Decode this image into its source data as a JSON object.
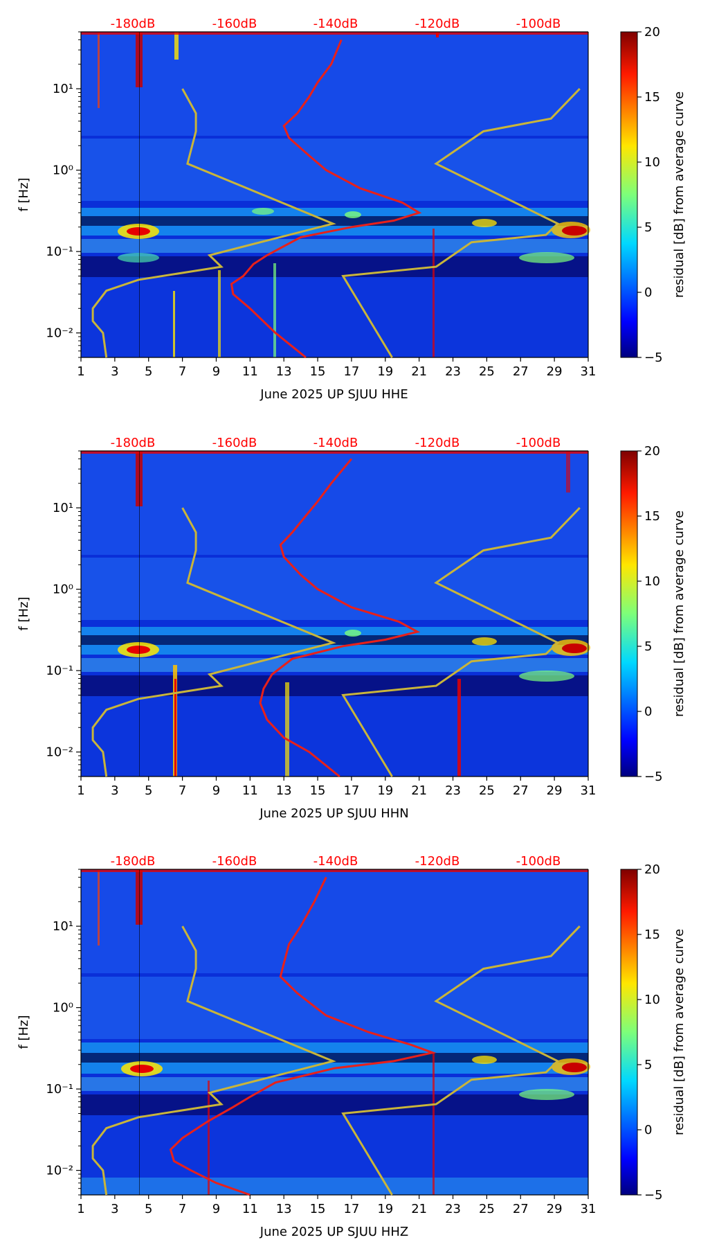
{
  "figure": {
    "colorbar_label": "residual [dB] from average curve",
    "colorbar_ticks": [
      "20",
      "15",
      "10",
      "5",
      "0",
      "−5"
    ],
    "colors": {
      "noise_model": "#c9b53a",
      "median_curve": "#e8201a",
      "db_labels": "#ff0000"
    }
  },
  "chart_data": [
    {
      "type": "heatmap",
      "title": "",
      "xlabel": "June 2025 UP SJUU  HHE",
      "ylabel": "f [Hz]",
      "x_ticks": [
        "1",
        "3",
        "5",
        "7",
        "9",
        "11",
        "13",
        "15",
        "17",
        "19",
        "21",
        "23",
        "25",
        "27",
        "29",
        "31"
      ],
      "y_ticks": [
        "10⁻²",
        "10⁻¹",
        "10⁰",
        "10¹"
      ],
      "db_top_axis": [
        "-180dB",
        "-160dB",
        "-140dB",
        "-120dB",
        "-100dB"
      ],
      "xlim": [
        1,
        31
      ],
      "ylim_hz": [
        0.005,
        50
      ],
      "colorbar_range_db": [
        -5,
        20
      ],
      "median_curve_day": [
        [
          14.3,
          0.005
        ],
        [
          12.5,
          0.01
        ],
        [
          11.0,
          0.02
        ],
        [
          10.0,
          0.03
        ],
        [
          9.9,
          0.04
        ],
        [
          10.6,
          0.05
        ],
        [
          11.2,
          0.07
        ],
        [
          12.0,
          0.09
        ],
        [
          14.0,
          0.15
        ],
        [
          17.0,
          0.2
        ],
        [
          19.5,
          0.24
        ],
        [
          21.0,
          0.3
        ],
        [
          20.0,
          0.4
        ],
        [
          17.5,
          0.6
        ],
        [
          15.5,
          1.0
        ],
        [
          14.5,
          1.5
        ],
        [
          13.3,
          2.5
        ],
        [
          13.0,
          3.5
        ],
        [
          13.8,
          5.0
        ],
        [
          14.5,
          8.0
        ],
        [
          15.0,
          12.0
        ],
        [
          15.8,
          20.0
        ],
        [
          16.4,
          40.0
        ]
      ]
    },
    {
      "type": "heatmap",
      "title": "",
      "xlabel": "June 2025 UP SJUU  HHN",
      "ylabel": "f [Hz]",
      "x_ticks": [
        "1",
        "3",
        "5",
        "7",
        "9",
        "11",
        "13",
        "15",
        "17",
        "19",
        "21",
        "23",
        "25",
        "27",
        "29",
        "31"
      ],
      "y_ticks": [
        "10⁻²",
        "10⁻¹",
        "10⁰",
        "10¹"
      ],
      "db_top_axis": [
        "-180dB",
        "-160dB",
        "-140dB",
        "-120dB",
        "-100dB"
      ],
      "xlim": [
        1,
        31
      ],
      "ylim_hz": [
        0.005,
        50
      ],
      "colorbar_range_db": [
        -5,
        20
      ],
      "median_curve_day": [
        [
          16.3,
          0.005
        ],
        [
          14.5,
          0.01
        ],
        [
          13.0,
          0.015
        ],
        [
          12.0,
          0.025
        ],
        [
          11.6,
          0.04
        ],
        [
          11.8,
          0.06
        ],
        [
          12.3,
          0.09
        ],
        [
          13.5,
          0.14
        ],
        [
          16.5,
          0.2
        ],
        [
          19.0,
          0.24
        ],
        [
          20.9,
          0.3
        ],
        [
          19.8,
          0.4
        ],
        [
          17.0,
          0.6
        ],
        [
          15.0,
          1.0
        ],
        [
          14.0,
          1.5
        ],
        [
          13.0,
          2.5
        ],
        [
          12.8,
          3.5
        ],
        [
          13.5,
          5.0
        ],
        [
          14.3,
          8.0
        ],
        [
          15.0,
          12.0
        ],
        [
          15.8,
          20.0
        ],
        [
          17.0,
          40.0
        ]
      ]
    },
    {
      "type": "heatmap",
      "title": "",
      "xlabel": "June 2025 UP SJUU  HHZ",
      "ylabel": "f [Hz]",
      "x_ticks": [
        "1",
        "3",
        "5",
        "7",
        "9",
        "11",
        "13",
        "15",
        "17",
        "19",
        "21",
        "23",
        "25",
        "27",
        "29",
        "31"
      ],
      "y_ticks": [
        "10⁻²",
        "10⁻¹",
        "10⁰",
        "10¹"
      ],
      "db_top_axis": [
        "-180dB",
        "-160dB",
        "-140dB",
        "-120dB",
        "-100dB"
      ],
      "xlim": [
        1,
        31
      ],
      "ylim_hz": [
        0.005,
        50
      ],
      "colorbar_range_db": [
        -5,
        20
      ],
      "median_curve_day": [
        [
          11.0,
          0.005
        ],
        [
          9.0,
          0.007
        ],
        [
          7.5,
          0.01
        ],
        [
          6.5,
          0.013
        ],
        [
          6.3,
          0.018
        ],
        [
          7.0,
          0.025
        ],
        [
          8.5,
          0.04
        ],
        [
          10.0,
          0.06
        ],
        [
          11.0,
          0.08
        ],
        [
          12.5,
          0.12
        ],
        [
          16.0,
          0.18
        ],
        [
          19.5,
          0.22
        ],
        [
          21.8,
          0.28
        ],
        [
          20.5,
          0.35
        ],
        [
          18.0,
          0.5
        ],
        [
          15.5,
          0.8
        ],
        [
          13.8,
          1.5
        ],
        [
          12.8,
          2.4
        ],
        [
          13.0,
          3.5
        ],
        [
          13.3,
          6.0
        ],
        [
          14.0,
          10.0
        ],
        [
          14.8,
          20.0
        ],
        [
          15.5,
          40.0
        ]
      ]
    }
  ],
  "noise_models_day": {
    "low": [
      [
        2.5,
        0.005
      ],
      [
        2.3,
        0.01
      ],
      [
        1.7,
        0.014
      ],
      [
        1.7,
        0.02
      ],
      [
        2.5,
        0.033
      ],
      [
        4.4,
        0.045
      ],
      [
        9.3,
        0.065
      ],
      [
        8.6,
        0.09
      ],
      [
        15.9,
        0.22
      ],
      [
        7.3,
        1.2
      ],
      [
        7.8,
        3.0
      ],
      [
        7.8,
        5.0
      ],
      [
        7.0,
        10.0
      ]
    ],
    "high": [
      [
        19.4,
        0.005
      ],
      [
        16.5,
        0.05
      ],
      [
        22.0,
        0.065
      ],
      [
        24.1,
        0.13
      ],
      [
        28.5,
        0.16
      ],
      [
        29.2,
        0.22
      ],
      [
        22.0,
        1.2
      ],
      [
        24.8,
        3.0
      ],
      [
        28.8,
        4.3
      ],
      [
        30.5,
        10.0
      ]
    ]
  }
}
